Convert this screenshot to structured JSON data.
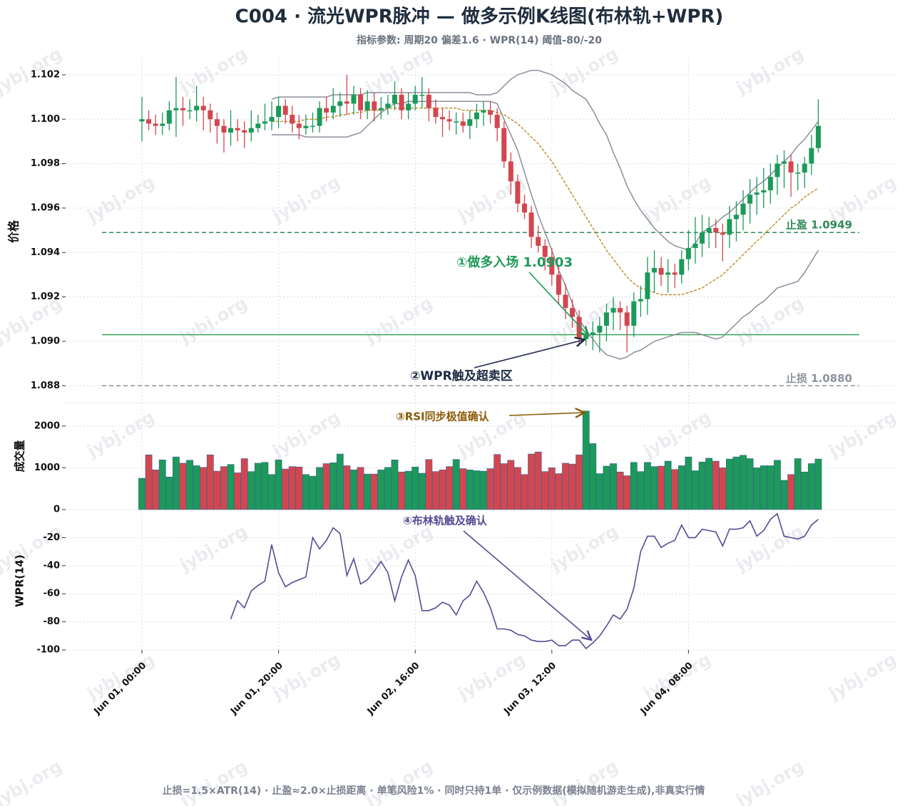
{
  "chart_data": {
    "type": "candlestick",
    "title": "C004 · 流光WPR脉冲 — 做多示例K线图(布林轨+WPR)",
    "subtitle": "指标参数: 周期20 偏差1.6 · WPR(14) 阈值-80/-20",
    "footer": "止损=1.5×ATR(14) · 止盈≈2.0×止损距离 · 单笔风险1% · 同时只持1单 · 仅示例数据(模拟随机游走生成),非真实行情",
    "watermark": "jybj.org",
    "ylabel": "价格",
    "up_color": "#1b9a59",
    "down_color": "#d2474f",
    "grid": true,
    "categories": [
      "Jun 01, 00:00",
      null,
      null,
      null,
      null,
      null,
      null,
      null,
      null,
      null,
      null,
      null,
      null,
      null,
      null,
      null,
      null,
      null,
      null,
      null,
      "Jun 01, 20:00",
      null,
      null,
      null,
      null,
      null,
      null,
      null,
      null,
      null,
      null,
      null,
      null,
      null,
      null,
      null,
      null,
      null,
      null,
      null,
      "Jun 02, 16:00",
      null,
      null,
      null,
      null,
      null,
      null,
      null,
      null,
      null,
      null,
      null,
      null,
      null,
      null,
      null,
      null,
      null,
      null,
      null,
      "Jun 03, 12:00",
      null,
      null,
      null,
      null,
      null,
      null,
      null,
      null,
      null,
      null,
      null,
      null,
      null,
      null,
      null,
      null,
      null,
      null,
      null,
      "Jun 04, 08:00",
      null,
      null,
      null,
      null,
      null,
      null,
      null,
      null,
      null,
      null,
      null,
      null,
      null,
      null,
      null,
      null,
      null,
      null,
      null
    ],
    "open": [
      1.0999,
      1.1,
      1.0998,
      1.0997,
      1.0998,
      1.1004,
      1.1005,
      1.1004,
      1.1004,
      1.1006,
      1.1004,
      1.1,
      1.0997,
      1.0994,
      1.0996,
      1.0995,
      1.0994,
      1.0996,
      1.0998,
      1.0999,
      1.1001,
      1.1006,
      1.1002,
      1.0998,
      1.0996,
      1.0997,
      1.0997,
      1.1005,
      1.1003,
      1.1006,
      1.1008,
      1.1007,
      1.1011,
      1.1004,
      1.1008,
      1.1004,
      1.1005,
      1.1007,
      1.1011,
      1.1004,
      1.1007,
      1.1011,
      1.1011,
      1.1005,
      1.1001,
      1.1,
      1.0999,
      1.0999,
      1.0997,
      1.1,
      1.1003,
      1.1004,
      1.1002,
      1.0996,
      1.0981,
      1.0972,
      1.0962,
      1.0958,
      1.0947,
      1.0943,
      1.0938,
      1.093,
      1.0921,
      1.0915,
      1.0911,
      1.0901,
      1.0903,
      1.0904,
      1.0907,
      1.0913,
      1.0915,
      1.0913,
      1.0907,
      1.0918,
      1.0919,
      1.0931,
      1.0933,
      1.093,
      1.0931,
      1.093,
      1.0937,
      1.0942,
      1.0944,
      1.0949,
      1.0951,
      1.0949,
      1.0948,
      1.0955,
      1.0957,
      1.0962,
      1.0966,
      1.0967,
      1.0968,
      1.0974,
      1.098,
      1.0981,
      1.0976,
      1.0976,
      1.098,
      1.0987
    ],
    "high": [
      1.101,
      1.1004,
      1.1002,
      1.1003,
      1.1008,
      1.1019,
      1.101,
      1.1009,
      1.1015,
      1.101,
      1.1007,
      1.1003,
      1.1,
      1.1004,
      1.1,
      1.0999,
      1.1004,
      1.1002,
      1.1007,
      1.1008,
      1.101,
      1.1009,
      1.1006,
      1.1002,
      1.1002,
      1.1003,
      1.1008,
      1.101,
      1.1014,
      1.1012,
      1.102,
      1.1015,
      1.1014,
      1.1013,
      1.1012,
      1.101,
      1.1011,
      1.1017,
      1.1014,
      1.1012,
      1.1015,
      1.1019,
      1.1014,
      1.1009,
      1.1005,
      1.1004,
      1.1003,
      1.1003,
      1.1004,
      1.1007,
      1.1008,
      1.1008,
      1.1005,
      1.0999,
      1.0985,
      1.0975,
      1.0966,
      1.0961,
      1.0952,
      1.0946,
      1.0942,
      1.0934,
      1.0926,
      1.0919,
      1.0914,
      1.0906,
      1.0909,
      1.0911,
      1.0917,
      1.092,
      1.0918,
      1.0916,
      1.0922,
      1.0925,
      1.0938,
      1.0941,
      1.0938,
      1.0937,
      1.0935,
      1.0941,
      1.095,
      1.0956,
      1.0957,
      1.0956,
      1.0955,
      1.0953,
      1.0961,
      1.0963,
      1.0968,
      1.0973,
      1.0974,
      1.0978,
      1.098,
      1.0984,
      1.0986,
      1.0984,
      1.098,
      1.0983,
      1.0993,
      1.1009
    ],
    "low": [
      1.099,
      1.0995,
      1.0993,
      1.0993,
      1.0995,
      1.0992,
      1.0997,
      1.1,
      1.0999,
      1.0995,
      1.0994,
      1.0989,
      1.0985,
      1.0988,
      1.099,
      1.0987,
      1.099,
      1.0994,
      1.0995,
      1.0995,
      1.0996,
      1.0998,
      1.0994,
      1.0991,
      1.0993,
      1.0994,
      1.0994,
      1.0999,
      1.1,
      1.1001,
      1.1002,
      1.1002,
      1.1,
      1.1,
      1.0999,
      1.1,
      1.1002,
      1.1004,
      1.1,
      1.1,
      1.1004,
      1.1005,
      1.0999,
      1.0998,
      1.0992,
      1.0995,
      1.0993,
      1.0994,
      1.0991,
      1.0996,
      1.0997,
      1.0998,
      1.099,
      1.0978,
      1.0966,
      1.0958,
      1.0955,
      1.0942,
      1.094,
      1.0932,
      1.0925,
      1.0917,
      1.091,
      1.0906,
      1.0898,
      1.0898,
      1.0896,
      1.0895,
      1.09,
      1.0905,
      1.0905,
      1.0895,
      1.0902,
      1.0911,
      1.0912,
      1.0922,
      1.0925,
      1.0922,
      1.0924,
      1.0926,
      1.0932,
      1.0935,
      1.0938,
      1.0942,
      1.0942,
      1.0936,
      1.0942,
      1.0945,
      1.095,
      1.0953,
      1.0957,
      1.096,
      1.0962,
      1.0966,
      1.0969,
      1.0965,
      1.0968,
      1.0969,
      1.0975,
      1.0985
    ],
    "close": [
      1.1,
      1.0998,
      1.0997,
      1.0998,
      1.1004,
      1.1005,
      1.1004,
      1.1004,
      1.1006,
      1.1004,
      1.1,
      1.0997,
      1.0994,
      1.0996,
      1.0995,
      1.0994,
      1.0996,
      1.0998,
      1.0999,
      1.1001,
      1.1006,
      1.1002,
      1.0998,
      1.0996,
      1.0997,
      1.0997,
      1.1005,
      1.1003,
      1.1006,
      1.1008,
      1.1007,
      1.1011,
      1.1004,
      1.1008,
      1.1004,
      1.1005,
      1.1007,
      1.1011,
      1.1004,
      1.1007,
      1.1011,
      1.1011,
      1.1005,
      1.1001,
      1.1,
      1.0999,
      1.0999,
      1.0997,
      1.1,
      1.1003,
      1.1004,
      1.1002,
      1.0996,
      1.0981,
      1.0972,
      1.0962,
      1.0958,
      1.0947,
      1.0943,
      1.0938,
      1.093,
      1.0921,
      1.0915,
      1.0911,
      1.0901,
      1.0903,
      1.0904,
      1.0907,
      1.0913,
      1.0915,
      1.0913,
      1.0907,
      1.0918,
      1.0919,
      1.0931,
      1.0933,
      1.093,
      1.0931,
      1.093,
      1.0937,
      1.0942,
      1.0944,
      1.0949,
      1.0951,
      1.0949,
      1.0948,
      1.0955,
      1.0957,
      1.0962,
      1.0966,
      1.0967,
      1.0968,
      1.0974,
      1.098,
      1.0981,
      1.0976,
      1.0976,
      1.098,
      1.0987,
      1.0997
    ],
    "bands": {
      "color": "#8a8f9c",
      "middle_color": "#c18a24",
      "upper": [
        null,
        null,
        null,
        null,
        null,
        null,
        null,
        null,
        null,
        null,
        null,
        null,
        null,
        null,
        null,
        null,
        null,
        null,
        null,
        1.1009,
        1.101,
        1.101,
        1.101,
        1.101,
        1.101,
        1.101,
        1.101,
        1.101,
        1.1011,
        1.1011,
        1.1011,
        1.1011,
        1.1011,
        1.1012,
        1.1012,
        1.1012,
        1.1012,
        1.1012,
        1.1012,
        1.1012,
        1.1012,
        1.1012,
        1.1012,
        1.1012,
        1.1012,
        1.1012,
        1.1012,
        1.1012,
        1.1012,
        1.1011,
        1.1011,
        1.1011,
        1.1012,
        1.1015,
        1.1018,
        1.102,
        1.1021,
        1.1022,
        1.1022,
        1.1021,
        1.102,
        1.1018,
        1.1016,
        1.1013,
        1.1011,
        1.1009,
        1.1004,
        1.0998,
        1.0993,
        1.0985,
        1.0978,
        1.097,
        1.0964,
        1.0959,
        1.0955,
        1.0951,
        1.0948,
        1.0945,
        1.0943,
        1.0942,
        1.0941,
        1.0944,
        1.0949,
        1.0951,
        1.0953,
        1.0956,
        1.0958,
        1.0961,
        1.0964,
        1.0967,
        1.097,
        1.0972,
        1.0975,
        1.0978,
        1.0981,
        1.0984,
        1.0988,
        1.0991,
        1.0995,
        1.0999
      ],
      "middle": [
        null,
        null,
        null,
        null,
        null,
        null,
        null,
        null,
        null,
        null,
        null,
        null,
        null,
        null,
        null,
        null,
        null,
        null,
        null,
        1.0999,
        1.0999,
        1.0999,
        1.0999,
        1.0999,
        1.1,
        1.1,
        1.1,
        1.1001,
        1.1001,
        1.1002,
        1.1002,
        1.1003,
        1.1003,
        1.1004,
        1.1004,
        1.1004,
        1.1005,
        1.1005,
        1.1005,
        1.1005,
        1.1005,
        1.1005,
        1.1005,
        1.1005,
        1.1005,
        1.1005,
        1.1005,
        1.1004,
        1.1004,
        1.1004,
        1.1004,
        1.1004,
        1.1003,
        1.1002,
        1.1,
        1.0998,
        1.0995,
        1.0992,
        1.0989,
        1.0985,
        1.0981,
        1.0976,
        1.0971,
        1.0966,
        1.0961,
        1.0956,
        1.0951,
        1.0946,
        1.0941,
        1.0937,
        1.0933,
        1.0929,
        1.0926,
        1.0924,
        1.0923,
        1.0922,
        1.0921,
        1.0921,
        1.0921,
        1.0921,
        1.0922,
        1.0923,
        1.0924,
        1.0926,
        1.0928,
        1.093,
        1.0933,
        1.0936,
        1.0939,
        1.0942,
        1.0945,
        1.0948,
        1.0951,
        1.0954,
        1.0957,
        1.096,
        1.0962,
        1.0965,
        1.0967,
        1.0969
      ],
      "lower": [
        null,
        null,
        null,
        null,
        null,
        null,
        null,
        null,
        null,
        null,
        null,
        null,
        null,
        null,
        null,
        null,
        null,
        null,
        null,
        1.0993,
        1.0993,
        1.0993,
        1.0993,
        1.0993,
        1.0992,
        1.0992,
        1.0992,
        1.0992,
        1.0992,
        1.0992,
        1.0992,
        1.0993,
        1.0994,
        1.0997,
        1.1,
        1.1003,
        1.1005,
        1.1007,
        1.1007,
        1.1008,
        1.1008,
        1.1008,
        1.1008,
        1.1008,
        1.1008,
        1.1008,
        1.1008,
        1.1008,
        1.1008,
        1.1008,
        1.1008,
        1.1008,
        1.1007,
        1.1,
        1.0993,
        1.0986,
        1.0976,
        1.0966,
        1.0957,
        1.0949,
        1.0941,
        1.0932,
        1.0925,
        1.0917,
        1.091,
        1.0905,
        1.0901,
        1.0897,
        1.0894,
        1.0893,
        1.0892,
        1.0893,
        1.0895,
        1.0896,
        1.0898,
        1.09,
        1.0901,
        1.0902,
        1.0903,
        1.0904,
        1.0904,
        1.0904,
        1.0903,
        1.0902,
        1.0901,
        1.0902,
        1.0905,
        1.0908,
        1.0911,
        1.0913,
        1.0916,
        1.0918,
        1.0921,
        1.0924,
        1.0925,
        1.0926,
        1.0927,
        1.0931,
        1.0936,
        1.0941
      ]
    },
    "levels": [
      {
        "value": 1.0949,
        "label": "止盈 1.0949",
        "color": "#2e8b57",
        "dashed": true
      },
      {
        "value": 1.0903,
        "color": "#3aa35c",
        "dashed": false
      },
      {
        "value": 1.088,
        "label": "止损 1.0880",
        "color": "#8d939e",
        "dashed": true
      }
    ],
    "annotations": [
      {
        "text": "①做多入场 1.0903",
        "color": "#1f9a57"
      },
      {
        "text": "②WPR触及超卖区",
        "color": "#1c2a44"
      },
      {
        "text": "③RSI同步极值确认",
        "color": "#8a5a06"
      },
      {
        "text": "④布林轨触及确认",
        "color": "#574a93"
      }
    ],
    "ylim": [
      1.0874,
      1.1028
    ],
    "yticks": [
      1.088,
      {
        "value": 1.09,
        "label": "1.090"
      },
      1.092,
      1.094,
      1.096,
      1.098,
      {
        "value": 1.1,
        "label": "1.100"
      },
      1.102
    ],
    "volume": {
      "ylabel": "成交量",
      "ylim": [
        0,
        2560
      ],
      "yticks": [
        0,
        1000,
        2000
      ],
      "edge_color": "#3f5f96",
      "values": [
        750,
        1310,
        950,
        1190,
        780,
        1260,
        1110,
        1180,
        1050,
        1010,
        1310,
        920,
        1030,
        1080,
        880,
        1220,
        910,
        1110,
        1130,
        840,
        1190,
        970,
        1030,
        1020,
        840,
        800,
        1010,
        1100,
        1120,
        1330,
        1050,
        950,
        1010,
        850,
        850,
        950,
        1010,
        1190,
        900,
        920,
        1020,
        870,
        1200,
        910,
        950,
        1030,
        1200,
        980,
        950,
        930,
        920,
        980,
        1320,
        1100,
        1180,
        1010,
        840,
        1330,
        1380,
        910,
        1000,
        860,
        1110,
        1090,
        1310,
        2360,
        1580,
        860,
        1040,
        1100,
        900,
        810,
        1130,
        910,
        1130,
        1030,
        1040,
        1160,
        960,
        1050,
        1260,
        930,
        1140,
        1230,
        1160,
        1000,
        1210,
        1260,
        1300,
        1220,
        1000,
        1050,
        1050,
        1180,
        700,
        840,
        1220,
        900,
        1100,
        1210
      ]
    },
    "wpr": {
      "ylabel": "WPR(14)",
      "color": "#574a93",
      "ylim": [
        -100,
        0
      ],
      "yticks": [
        -100,
        -80,
        -60,
        -40,
        -20
      ],
      "values": [
        null,
        null,
        null,
        null,
        null,
        null,
        null,
        null,
        null,
        null,
        null,
        null,
        null,
        -78,
        -65,
        -70,
        -58,
        -54,
        -51,
        -25,
        -45,
        -55,
        -52,
        -50,
        -48,
        -20,
        -28,
        -22,
        -13,
        -17,
        -47,
        -35,
        -53,
        -50,
        -44,
        -37,
        -45,
        -65,
        -48,
        -36,
        -47,
        -72,
        -72,
        -70,
        -66,
        -68,
        -75,
        -65,
        -61,
        -51,
        -59,
        -70,
        -85,
        -85,
        -86,
        -89,
        -90,
        -93,
        -94,
        -94,
        -93,
        -97,
        -97,
        -93,
        -93,
        -99,
        -95,
        -90,
        -83,
        -75,
        -78,
        -71,
        -56,
        -30,
        -19,
        -19,
        -27,
        -24,
        -22,
        -11,
        -20,
        -20,
        -14,
        -15,
        -16,
        -26,
        -14,
        -14,
        -13,
        -8,
        -19,
        -15,
        -7,
        -3,
        -19,
        -20,
        -21,
        -19,
        -11,
        -7
      ]
    }
  }
}
